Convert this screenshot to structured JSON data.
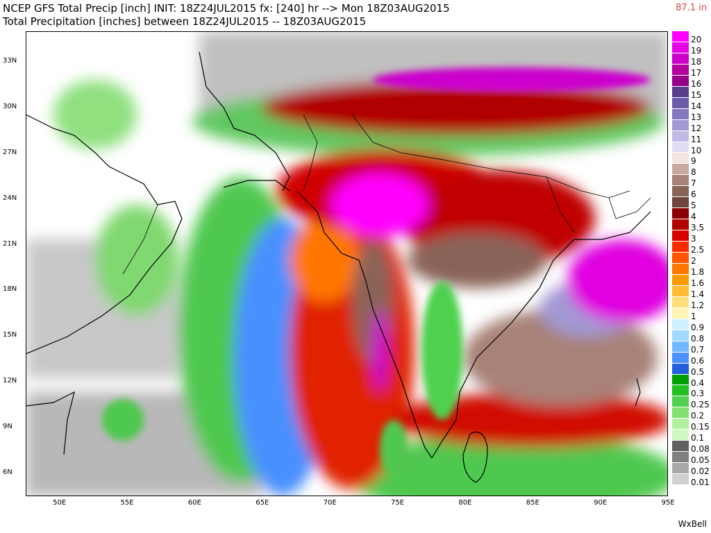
{
  "header": {
    "line1": "NCEP GFS Total Precip [inch] INIT: 18Z24JUL2015 fx: [240] hr --> Mon 18Z03AUG2015",
    "line2": "Total Precipitation [inches] between 18Z24JUL2015 -- 18Z03AUG2015",
    "max_value": "87.1 in"
  },
  "map": {
    "lat_ticks": [
      "33N",
      "30N",
      "27N",
      "24N",
      "21N",
      "18N",
      "15N",
      "12N",
      "9N",
      "6N"
    ],
    "lon_ticks": [
      "50E",
      "55E",
      "60E",
      "65E",
      "70E",
      "75E",
      "80E",
      "85E",
      "90E",
      "95E"
    ],
    "lat_range": [
      4.5,
      35
    ],
    "lon_range": [
      47.5,
      95
    ]
  },
  "legend": {
    "levels": [
      "20",
      "19",
      "18",
      "17",
      "16",
      "15",
      "14",
      "13",
      "12",
      "11",
      "10",
      "9",
      "8",
      "7",
      "6",
      "5",
      "4",
      "3.5",
      "3",
      "2.5",
      "2",
      "1.8",
      "1.6",
      "1.4",
      "1.2",
      "1",
      "0.9",
      "0.8",
      "0.7",
      "0.6",
      "0.5",
      "0.4",
      "0.3",
      "0.25",
      "0.2",
      "0.15",
      "0.1",
      "0.08",
      "0.05",
      "0.02",
      "0.01"
    ],
    "colors": [
      "#ff00ff",
      "#e600e6",
      "#cc00cc",
      "#b3009e",
      "#99008a",
      "#5a3f8f",
      "#6b5aa8",
      "#8577bf",
      "#a398d4",
      "#c2bae6",
      "#e0dcf5",
      "#f2e5e0",
      "#c9a8a0",
      "#a88278",
      "#8a6358",
      "#6e463e",
      "#8c0000",
      "#b30000",
      "#d90000",
      "#ff2a00",
      "#ff5500",
      "#ff7700",
      "#ff9900",
      "#ffbb33",
      "#ffdd77",
      "#fff5b0",
      "#d0f0ff",
      "#a0d8ff",
      "#70b8ff",
      "#4a90ff",
      "#2060e0",
      "#00a000",
      "#20c020",
      "#50d050",
      "#80e070",
      "#b0f0a0",
      "#d0f8c0",
      "#606060",
      "#808080",
      "#a8a8a8",
      "#d0d0d0",
      "#ffffff"
    ]
  },
  "brand": "WxBell"
}
